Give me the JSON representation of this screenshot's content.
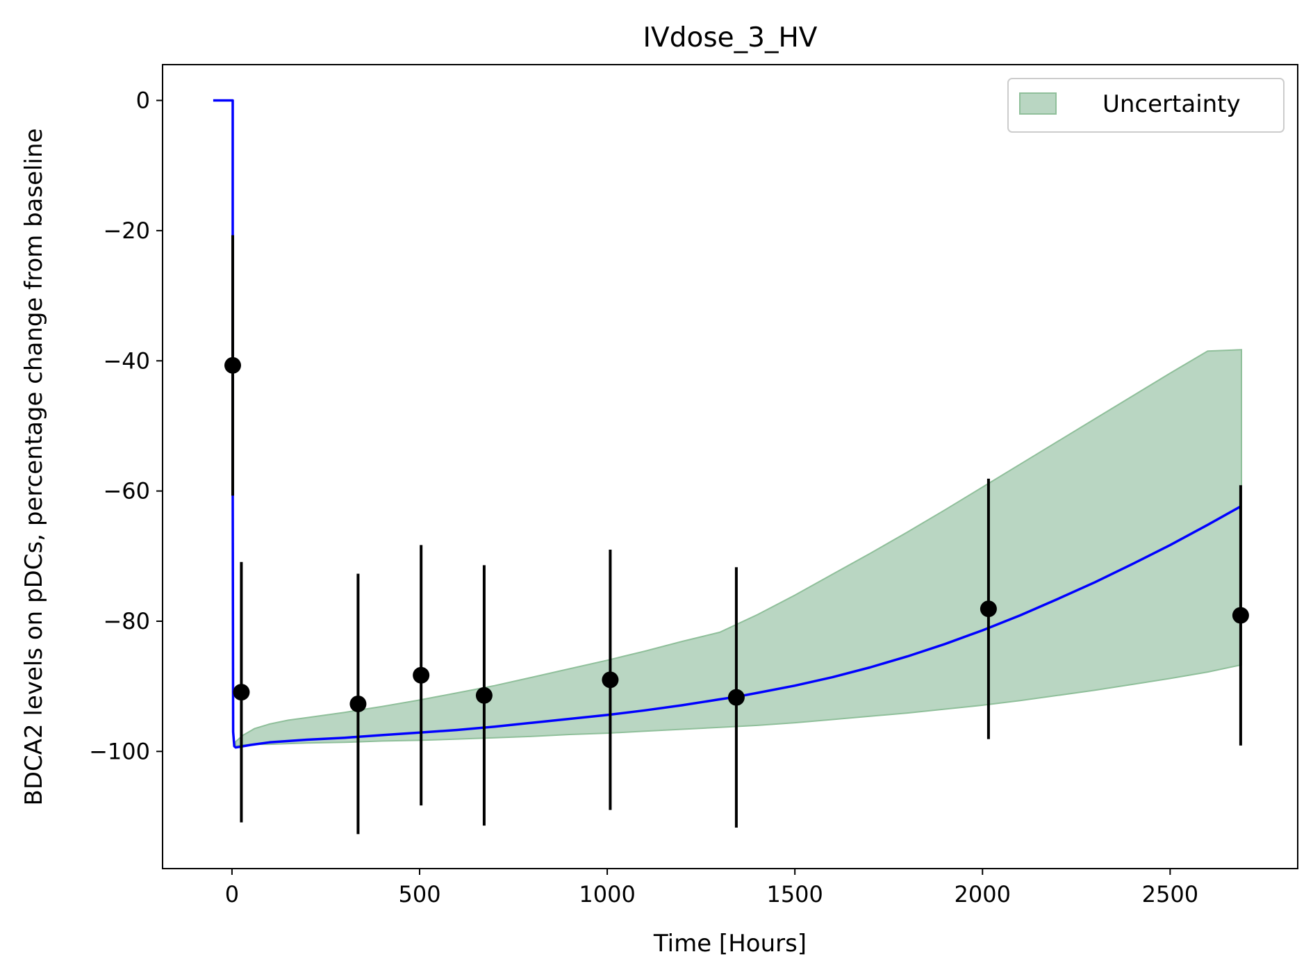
{
  "chart_data": {
    "type": "line",
    "title": "IVdose_3_HV",
    "xlabel": "Time [Hours]",
    "ylabel": "BDCA2 levels on pDCs, percentage change from baseline",
    "xlim": [
      -185,
      2840
    ],
    "ylim": [
      -118,
      5.5
    ],
    "xticks": [
      0,
      500,
      1000,
      1500,
      2000,
      2500
    ],
    "yticks": [
      0,
      -20,
      -40,
      -60,
      -80,
      -100
    ],
    "xtick_labels": [
      "0",
      "500",
      "1000",
      "1500",
      "2000",
      "2500"
    ],
    "ytick_labels": [
      "0",
      "−20",
      "−40",
      "−60",
      "−80",
      "−100"
    ],
    "grid": false,
    "legend": {
      "position": "top-right",
      "entries": [
        "Uncertainty"
      ]
    },
    "colors": {
      "model": "#0000ff",
      "band_fill": "#b9d6c2",
      "band_edge": "#8fbf9a",
      "observed": "#000000"
    },
    "model_line": {
      "x": [
        -50,
        2,
        2,
        3,
        6,
        10,
        20,
        50,
        100,
        200,
        300,
        400,
        500,
        600,
        700,
        800,
        900,
        1000,
        1100,
        1200,
        1300,
        1345,
        1400,
        1500,
        1600,
        1700,
        1800,
        1900,
        2000,
        2100,
        2200,
        2300,
        2400,
        2500,
        2600,
        2690
      ],
      "y": [
        0,
        0,
        -60,
        -97,
        -99.2,
        -99.4,
        -99.3,
        -99.0,
        -98.6,
        -98.2,
        -97.9,
        -97.5,
        -97.1,
        -96.7,
        -96.2,
        -95.6,
        -95.0,
        -94.4,
        -93.7,
        -92.9,
        -92.0,
        -91.6,
        -91.0,
        -89.9,
        -88.6,
        -87.1,
        -85.4,
        -83.5,
        -81.4,
        -79.1,
        -76.6,
        -74.0,
        -71.2,
        -68.3,
        -65.2,
        -62.3
      ]
    },
    "uncertainty_band": {
      "x": [
        10,
        30,
        60,
        100,
        150,
        200,
        300,
        400,
        500,
        600,
        700,
        800,
        900,
        1000,
        1100,
        1200,
        1300,
        1400,
        1500,
        1600,
        1700,
        1800,
        1900,
        2000,
        2100,
        2200,
        2300,
        2400,
        2500,
        2600,
        2690
      ],
      "lower": [
        -99.2,
        -99.0,
        -98.9,
        -98.9,
        -98.8,
        -98.7,
        -98.6,
        -98.4,
        -98.3,
        -98.1,
        -97.9,
        -97.7,
        -97.4,
        -97.2,
        -96.9,
        -96.6,
        -96.3,
        -96.0,
        -95.6,
        -95.1,
        -94.6,
        -94.1,
        -93.5,
        -92.9,
        -92.2,
        -91.4,
        -90.6,
        -89.7,
        -88.8,
        -87.8,
        -86.7
      ],
      "upper": [
        -98.5,
        -97.5,
        -96.5,
        -95.8,
        -95.2,
        -94.8,
        -94.0,
        -93.1,
        -92.1,
        -91.0,
        -89.9,
        -88.6,
        -87.3,
        -86.0,
        -84.6,
        -83.1,
        -81.7,
        -79.0,
        -76.0,
        -72.8,
        -69.6,
        -66.3,
        -62.9,
        -59.4,
        -55.9,
        -52.4,
        -48.9,
        -45.4,
        -41.9,
        -38.5,
        -38.3
      ]
    },
    "observed": [
      {
        "x": 2,
        "y": -40.7,
        "y_low": -60.7,
        "y_high": -20.7
      },
      {
        "x": 25,
        "y": -90.9,
        "y_low": -110.9,
        "y_high": -70.9
      },
      {
        "x": 336,
        "y": -92.7,
        "y_low": -112.7,
        "y_high": -72.7
      },
      {
        "x": 504,
        "y": -88.3,
        "y_low": -108.3,
        "y_high": -68.3
      },
      {
        "x": 672,
        "y": -91.4,
        "y_low": -111.4,
        "y_high": -71.4
      },
      {
        "x": 1008,
        "y": -89.0,
        "y_low": -109.0,
        "y_high": -69.0
      },
      {
        "x": 1344,
        "y": -91.7,
        "y_low": -111.7,
        "y_high": -71.7
      },
      {
        "x": 2016,
        "y": -78.1,
        "y_low": -98.1,
        "y_high": -58.1
      },
      {
        "x": 2688,
        "y": -79.1,
        "y_low": -99.1,
        "y_high": -59.1
      }
    ]
  }
}
